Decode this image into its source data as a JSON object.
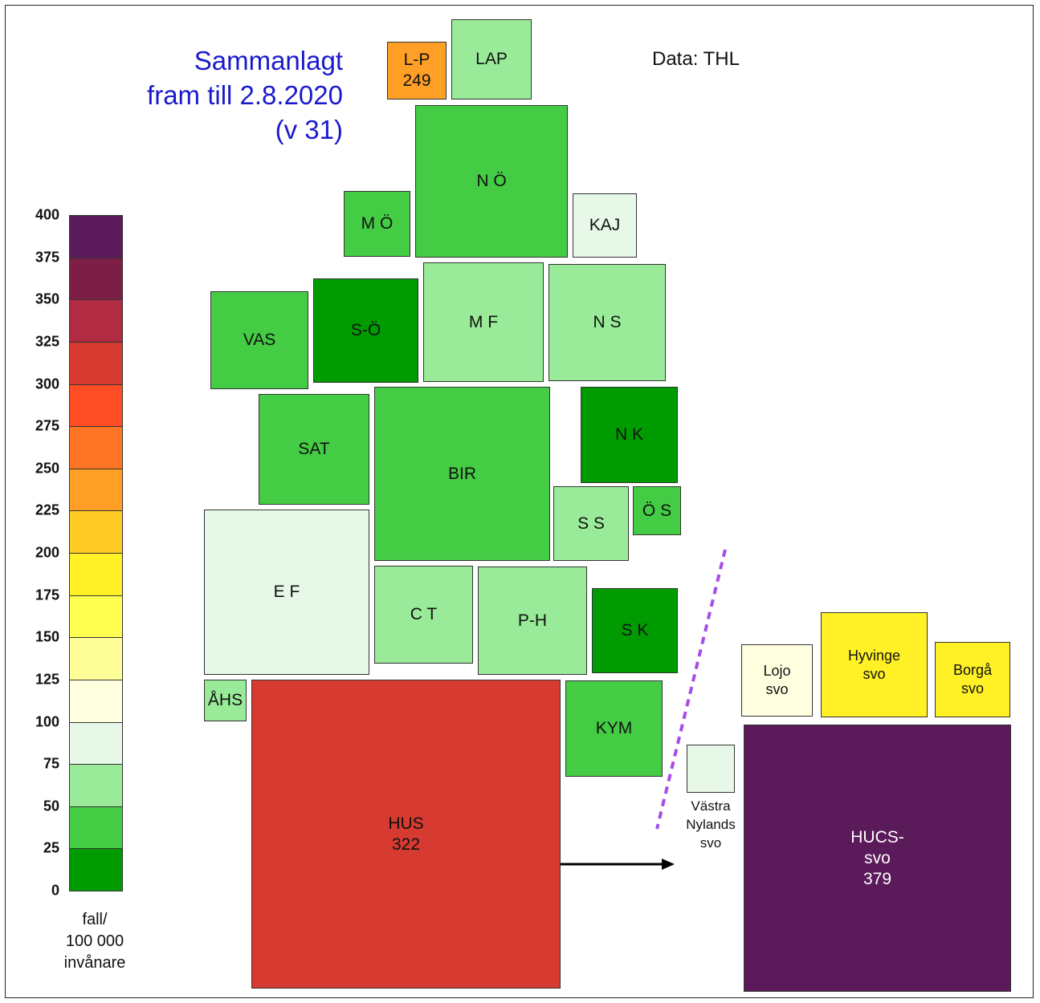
{
  "title": [
    "Sammanlagt",
    "fram till 2.8.2020",
    "(v 31)"
  ],
  "source": "Data: THL",
  "legend": {
    "ticks": [
      "400",
      "375",
      "350",
      "325",
      "300",
      "275",
      "250",
      "225",
      "200",
      "175",
      "150",
      "125",
      "100",
      "75",
      "50",
      "25",
      "0"
    ],
    "colors": [
      "#5b1a5a",
      "#7c1e46",
      "#b12b42",
      "#d63a30",
      "#ff4d26",
      "#ff7425",
      "#ff9f25",
      "#ffcb25",
      "#fff125",
      "#ffff52",
      "#ffff99",
      "#ffffe0",
      "#e8f8e8",
      "#99eb99",
      "#44cc44",
      "#009b00"
    ],
    "unit": "fall/\n100 000\ninvånare"
  },
  "regions": [
    {
      "name": "lp",
      "label": "L-P\n249",
      "color": "#ff9f25"
    },
    {
      "name": "lap",
      "label": "LAP",
      "color": "#99eb99"
    },
    {
      "name": "no",
      "label": "N Ö",
      "color": "#44cc44"
    },
    {
      "name": "mo",
      "label": "M Ö",
      "color": "#44cc44"
    },
    {
      "name": "kaj",
      "label": "KAJ",
      "color": "#e8f8e8"
    },
    {
      "name": "vas",
      "label": "VAS",
      "color": "#44cc44"
    },
    {
      "name": "so",
      "label": "S-Ö",
      "color": "#009b00"
    },
    {
      "name": "mf",
      "label": "M F",
      "color": "#99eb99"
    },
    {
      "name": "ns",
      "label": "N S",
      "color": "#99eb99"
    },
    {
      "name": "sat",
      "label": "SAT",
      "color": "#44cc44"
    },
    {
      "name": "bir",
      "label": "BIR",
      "color": "#44cc44"
    },
    {
      "name": "nk",
      "label": "N K",
      "color": "#009b00"
    },
    {
      "name": "ss",
      "label": "S S",
      "color": "#99eb99"
    },
    {
      "name": "os",
      "label": "Ö S",
      "color": "#44cc44"
    },
    {
      "name": "ef",
      "label": "E F",
      "color": "#e8f8e8"
    },
    {
      "name": "ct",
      "label": "C T",
      "color": "#99eb99"
    },
    {
      "name": "ph",
      "label": "P-H",
      "color": "#99eb99"
    },
    {
      "name": "sk",
      "label": "S K",
      "color": "#009b00"
    },
    {
      "name": "ahs",
      "label": "ÅHS",
      "color": "#99eb99"
    },
    {
      "name": "hus",
      "label": "HUS\n322",
      "color": "#d63a30"
    },
    {
      "name": "kym",
      "label": "KYM",
      "color": "#44cc44"
    }
  ],
  "subregions": [
    {
      "name": "lojo",
      "label": "Lojo\nsvo",
      "color": "#ffffe0"
    },
    {
      "name": "hyvinge",
      "label": "Hyvinge\nsvo",
      "color": "#fff125"
    },
    {
      "name": "borga",
      "label": "Borgå\nsvo",
      "color": "#fff125"
    },
    {
      "name": "vastra",
      "label": "",
      "color": "#e8f8e8"
    },
    {
      "name": "hucs",
      "label": "HUCS-\nsvo\n379",
      "color": "#5b1a5a"
    }
  ],
  "vastra_label": "Västra\nNylands\nsvo",
  "divider_color": "#a64de8"
}
